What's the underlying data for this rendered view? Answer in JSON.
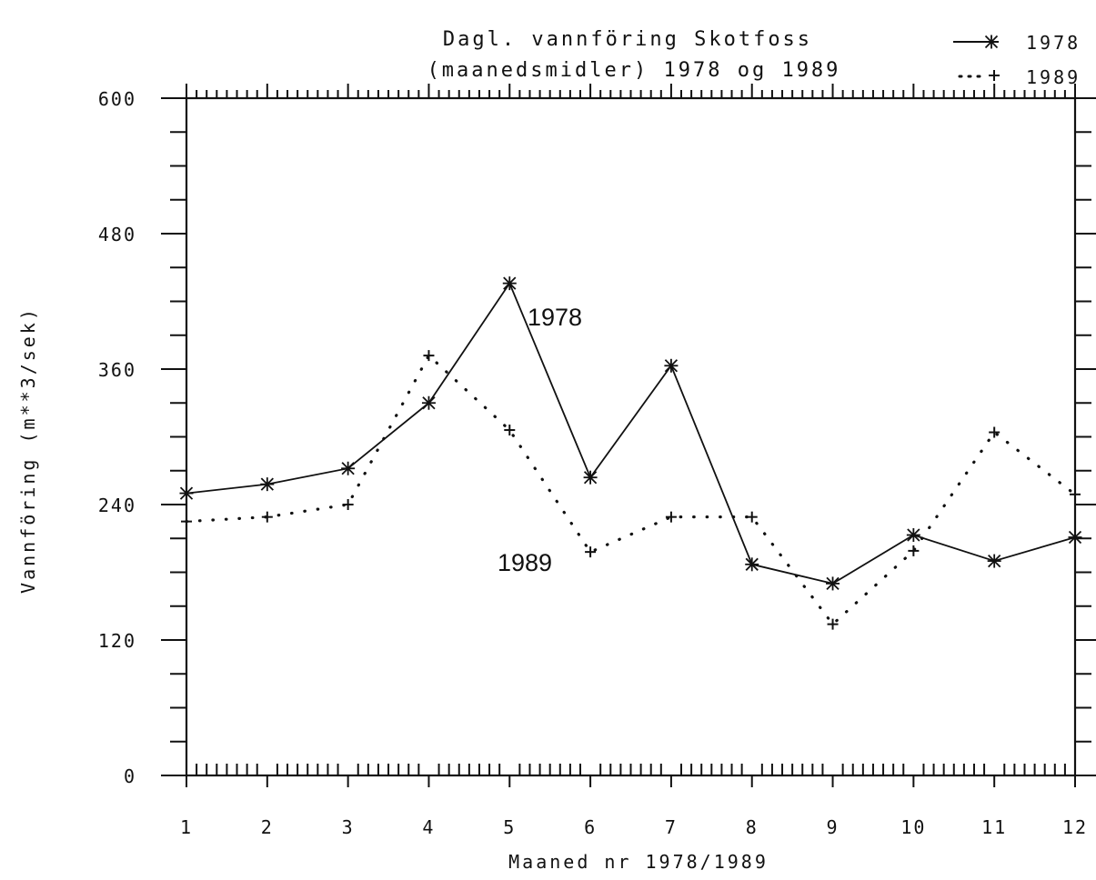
{
  "chart_data": {
    "type": "line",
    "title": "Dagl. vannföring Skotfoss",
    "subtitle": "(maanedsmidler) 1978 og 1989",
    "xlabel": "Maaned nr 1978/1989",
    "ylabel": "Vannföring (m**3/sek)",
    "x": [
      1,
      2,
      3,
      4,
      5,
      6,
      7,
      8,
      9,
      10,
      11,
      12
    ],
    "x_tick_labels": [
      "1",
      "2",
      "3",
      "4",
      "5",
      "6",
      "7",
      "8",
      "9",
      "10",
      "11",
      "12"
    ],
    "y_tick_labels": [
      "0",
      "120",
      "240",
      "360",
      "480",
      "600"
    ],
    "xlim": [
      1,
      12
    ],
    "ylim": [
      0,
      600
    ],
    "grid": false,
    "legend_position": "top-right",
    "series": [
      {
        "name": "1978",
        "style": "solid",
        "marker": "asterisk",
        "values": [
          250,
          258,
          272,
          330,
          436,
          264,
          363,
          187,
          170,
          213,
          190,
          211
        ]
      },
      {
        "name": "1989",
        "style": "dotted",
        "marker": "plus",
        "values": [
          225,
          229,
          240,
          372,
          306,
          198,
          229,
          229,
          134,
          199,
          304,
          249
        ]
      }
    ],
    "annotations": [
      {
        "text": "1978",
        "series": "1978"
      },
      {
        "text": "1989",
        "series": "1989"
      }
    ]
  }
}
